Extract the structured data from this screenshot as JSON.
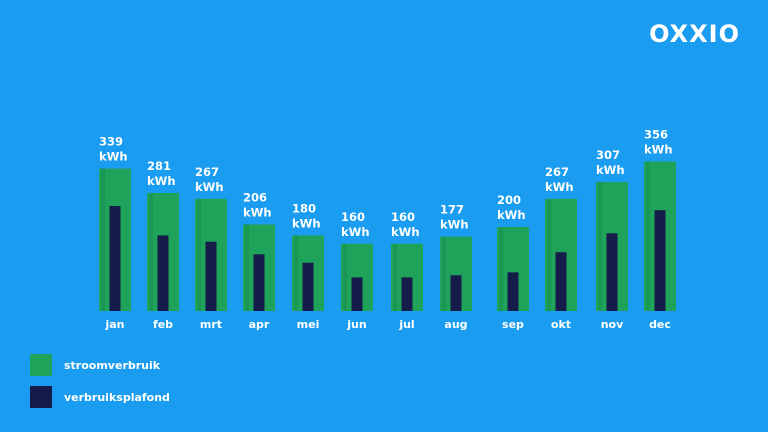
{
  "brand": {
    "logo": "OXXIO"
  },
  "chart_data": {
    "type": "bar",
    "categories": [
      "jan",
      "feb",
      "mrt",
      "apr",
      "mei",
      "jun",
      "jul",
      "aug",
      "sep",
      "okt",
      "nov",
      "dec"
    ],
    "series": [
      {
        "name": "stroomverbruik",
        "color": "#1fa35a",
        "values": [
          339,
          281,
          267,
          206,
          180,
          160,
          160,
          177,
          200,
          267,
          307,
          356
        ]
      },
      {
        "name": "verbruiksplafond",
        "color": "#161c4a",
        "values": [
          250,
          180,
          165,
          135,
          115,
          80,
          80,
          85,
          92,
          140,
          185,
          240
        ]
      }
    ],
    "value_labels": [
      "339 kWh",
      "281 kWh",
      "267 kWh",
      "206 kWh",
      "180 kWh",
      "160 kWh",
      "160 kWh",
      "177 kWh",
      "200 kWh",
      "267 kWh",
      "307 kWh",
      "356 kWh"
    ],
    "label_parts": [
      [
        "339",
        "kWh"
      ],
      [
        "281",
        "kWh"
      ],
      [
        "267",
        "kWh"
      ],
      [
        "206",
        "kWh"
      ],
      [
        "180",
        "kWh"
      ],
      [
        "160",
        "kWh"
      ],
      [
        "160",
        "kWh"
      ],
      [
        "177",
        "kWh"
      ],
      [
        "200",
        "kWh"
      ],
      [
        "267",
        "kWh"
      ],
      [
        "307",
        "kWh"
      ],
      [
        "356",
        "kWh"
      ]
    ],
    "unit": "kWh",
    "grid": false,
    "legend_position": "bottom-left"
  }
}
